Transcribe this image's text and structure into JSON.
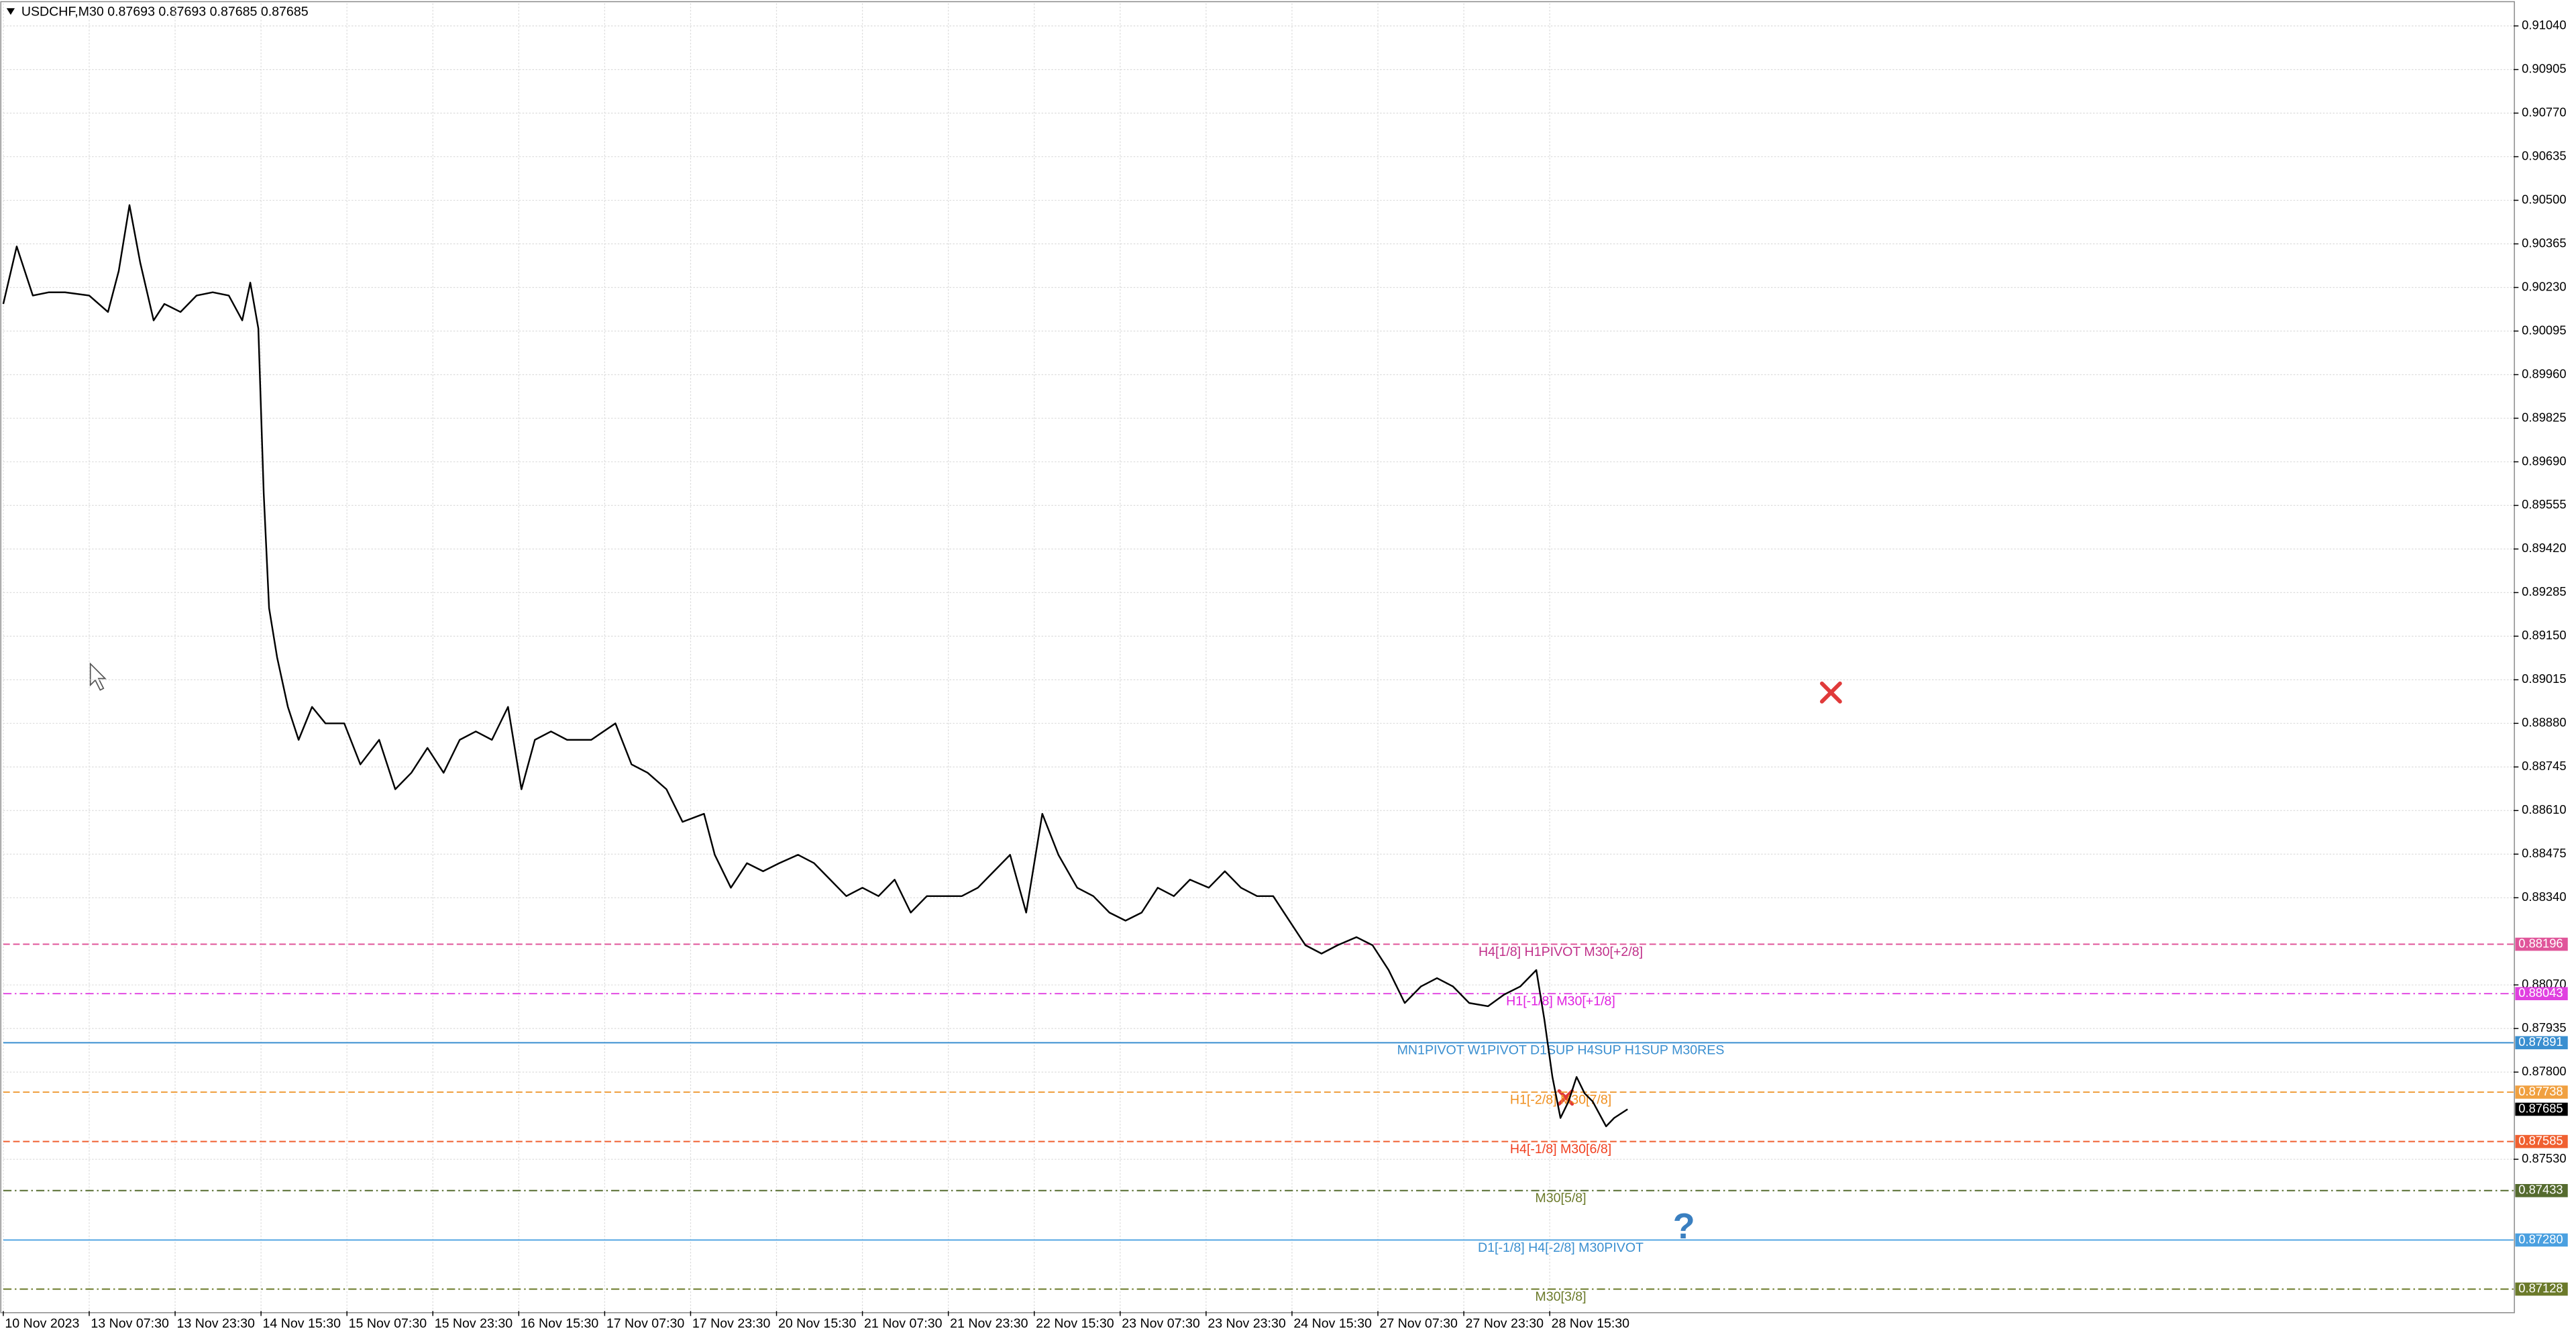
{
  "chart_data": {
    "type": "line",
    "title": "USDCHF,M30  0.87693 0.87693 0.87685 0.87685",
    "xlim": [
      0,
      935
    ],
    "ylim": [
      0.8706,
      0.9111
    ],
    "grid": true,
    "xticks": [
      {
        "value": 0,
        "label": "10 Nov 2023"
      },
      {
        "value": 32,
        "label": "13 Nov 07:30"
      },
      {
        "value": 64,
        "label": "13 Nov 23:30"
      },
      {
        "value": 96,
        "label": "14 Nov 15:30"
      },
      {
        "value": 128,
        "label": "15 Nov 07:30"
      },
      {
        "value": 160,
        "label": "15 Nov 23:30"
      },
      {
        "value": 192,
        "label": "16 Nov 15:30"
      },
      {
        "value": 224,
        "label": "17 Nov 07:30"
      },
      {
        "value": 256,
        "label": "17 Nov 23:30"
      },
      {
        "value": 288,
        "label": "20 Nov 15:30"
      },
      {
        "value": 320,
        "label": "21 Nov 07:30"
      },
      {
        "value": 352,
        "label": "21 Nov 23:30"
      },
      {
        "value": 384,
        "label": "22 Nov 15:30"
      },
      {
        "value": 416,
        "label": "23 Nov 07:30"
      },
      {
        "value": 448,
        "label": "23 Nov 23:30"
      },
      {
        "value": 480,
        "label": "24 Nov 15:30"
      },
      {
        "value": 512,
        "label": "27 Nov 07:30"
      },
      {
        "value": 544,
        "label": "27 Nov 23:30"
      },
      {
        "value": 576,
        "label": "28 Nov 15:30"
      }
    ],
    "yticks": [
      {
        "value": 0.9104,
        "label": "0.91040"
      },
      {
        "value": 0.90905,
        "label": "0.90905"
      },
      {
        "value": 0.9077,
        "label": "0.90770"
      },
      {
        "value": 0.90635,
        "label": "0.90635"
      },
      {
        "value": 0.905,
        "label": "0.90500"
      },
      {
        "value": 0.90365,
        "label": "0.90365"
      },
      {
        "value": 0.9023,
        "label": "0.90230"
      },
      {
        "value": 0.90095,
        "label": "0.90095"
      },
      {
        "value": 0.8996,
        "label": "0.89960"
      },
      {
        "value": 0.89825,
        "label": "0.89825"
      },
      {
        "value": 0.8969,
        "label": "0.89690"
      },
      {
        "value": 0.89555,
        "label": "0.89555"
      },
      {
        "value": 0.8942,
        "label": "0.89420"
      },
      {
        "value": 0.89285,
        "label": "0.89285"
      },
      {
        "value": 0.8915,
        "label": "0.89150"
      },
      {
        "value": 0.89015,
        "label": "0.89015"
      },
      {
        "value": 0.8888,
        "label": "0.88880"
      },
      {
        "value": 0.88745,
        "label": "0.88745"
      },
      {
        "value": 0.8861,
        "label": "0.88610"
      },
      {
        "value": 0.88475,
        "label": "0.88475"
      },
      {
        "value": 0.8834,
        "label": "0.88340"
      },
      {
        "value": 0.8807,
        "label": "0.88070"
      },
      {
        "value": 0.87935,
        "label": "0.87935"
      },
      {
        "value": 0.878,
        "label": "0.87800"
      },
      {
        "value": 0.8753,
        "label": "0.87530"
      }
    ],
    "series": [
      {
        "color": "#000000",
        "x": [
          0,
          5,
          11,
          17,
          23,
          32,
          39,
          43,
          47,
          51,
          56,
          60,
          66,
          72,
          78,
          84,
          89,
          92,
          95,
          97,
          99,
          102,
          106,
          110,
          115,
          120,
          127,
          133,
          140,
          146,
          152,
          158,
          164,
          170,
          176,
          182,
          188,
          193,
          198,
          204,
          210,
          219,
          228,
          234,
          240,
          247,
          253,
          261,
          265,
          271,
          277,
          283,
          289,
          296,
          302,
          308,
          314,
          320,
          326,
          332,
          338,
          344,
          351,
          357,
          363,
          369,
          375,
          381,
          387,
          393,
          400,
          406,
          412,
          418,
          424,
          430,
          436,
          442,
          449,
          455,
          461,
          467,
          473,
          479,
          485,
          491,
          497,
          504,
          510,
          516,
          522,
          528,
          534,
          540,
          546,
          553,
          559,
          565,
          571,
          574,
          577,
          580,
          583,
          586,
          589,
          592,
          597,
          600,
          605
        ],
        "values": [
          0.90179,
          0.90357,
          0.90205,
          0.90215,
          0.90215,
          0.90205,
          0.90154,
          0.90281,
          0.90485,
          0.90307,
          0.90128,
          0.90179,
          0.90154,
          0.90205,
          0.90215,
          0.90205,
          0.90128,
          0.90245,
          0.90103,
          0.89593,
          0.89237,
          0.89084,
          0.88931,
          0.88829,
          0.88931,
          0.8888,
          0.8888,
          0.88753,
          0.88829,
          0.88676,
          0.88727,
          0.88804,
          0.88727,
          0.88829,
          0.88855,
          0.88829,
          0.88931,
          0.88676,
          0.88829,
          0.88855,
          0.88829,
          0.88829,
          0.8888,
          0.88753,
          0.88727,
          0.88676,
          0.88575,
          0.886,
          0.88473,
          0.88371,
          0.88447,
          0.88422,
          0.88447,
          0.88473,
          0.88447,
          0.88396,
          0.88345,
          0.88371,
          0.88345,
          0.88396,
          0.88294,
          0.88345,
          0.88345,
          0.88345,
          0.88371,
          0.88422,
          0.88473,
          0.88294,
          0.886,
          0.88473,
          0.88371,
          0.88345,
          0.88294,
          0.88269,
          0.88294,
          0.88371,
          0.88345,
          0.88396,
          0.88371,
          0.88422,
          0.88371,
          0.88345,
          0.88345,
          0.88269,
          0.88193,
          0.88167,
          0.88193,
          0.88218,
          0.88193,
          0.88116,
          0.88014,
          0.88065,
          0.88091,
          0.88065,
          0.88014,
          0.88004,
          0.8804,
          0.88065,
          0.88116,
          0.87963,
          0.87785,
          0.87658,
          0.87709,
          0.87785,
          0.87734,
          0.87709,
          0.87632,
          0.87658,
          0.87685
        ]
      }
    ],
    "levels": [
      {
        "name": "H4[1/8] H1PIVOT M30[+2/8]",
        "value": 0.88196,
        "color": "#e0559a",
        "text_color": "#c0308a",
        "style": "dashed"
      },
      {
        "name": "H1[-1/8] M30[+1/8]",
        "value": 0.88043,
        "color": "#e040e0",
        "text_color": "#e020e0",
        "style": "dashdot"
      },
      {
        "name": "MN1PIVOT W1PIVOT D1SUP H4SUP H1SUP M30RES",
        "value": 0.87891,
        "color": "#3a8fd0",
        "text_color": "#3a8fd0",
        "style": "solid"
      },
      {
        "name": "H1[-2/8] M30[7/8]",
        "value": 0.87738,
        "color": "#f0a040",
        "text_color": "#f09020",
        "style": "dashed"
      },
      {
        "name": "H4[-1/8] M30[6/8]",
        "value": 0.87585,
        "color": "#f06030",
        "text_color": "#f04020",
        "style": "dashed"
      },
      {
        "name": "M30[5/8]",
        "value": 0.87433,
        "color": "#556b2f",
        "text_color": "#6b7a2a",
        "style": "dashdot"
      },
      {
        "name": "D1[-1/8] H4[-2/8] M30PIVOT",
        "value": 0.8728,
        "value_label": "0.87280",
        "color": "#4aa0e0",
        "text_color": "#3a8fd0",
        "style": "solid"
      },
      {
        "name": "M30[3/8]",
        "value": 0.87128,
        "color": "#6b7a2a",
        "text_color": "#6b7a2a",
        "style": "dashdot"
      }
    ],
    "current": {
      "value": 0.87685,
      "color": "#000000"
    }
  }
}
